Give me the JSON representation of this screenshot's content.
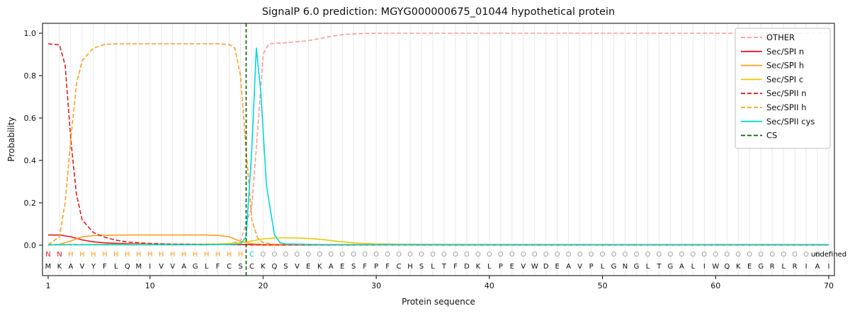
{
  "colors": {
    "background": "#ffffff",
    "grid": "#e9e9e9",
    "spine": "#2b2b2b",
    "tick_text": "#111111",
    "sequence_text": "#111111",
    "legend_border": "#c0c0c0"
  },
  "legend": [
    {
      "label": "OTHER",
      "color": "#ff9896",
      "dash": true
    },
    {
      "label": "Sec/SPI n",
      "color": "#e41a1c",
      "dash": false
    },
    {
      "label": "Sec/SPI h",
      "color": "#ff9e1b",
      "dash": false
    },
    {
      "label": "Sec/SPI c",
      "color": "#eec900",
      "dash": false
    },
    {
      "label": "Sec/SPII n",
      "color": "#e41a1c",
      "dash": true
    },
    {
      "label": "Sec/SPII h",
      "color": "#ff9e1b",
      "dash": true
    },
    {
      "label": "Sec/SPII cys",
      "color": "#00d8e0",
      "dash": false
    },
    {
      "label": "CS",
      "color": "#006400",
      "dash": true
    }
  ],
  "chart_data": {
    "type": "line",
    "title": "SignalP 6.0 prediction: MGYG000000675_01044 hypothetical protein",
    "xlabel": "Protein sequence",
    "ylabel": "Probability",
    "xlim": [
      0.5,
      70.5
    ],
    "ylim": [
      0,
      1.05
    ],
    "xticks": [
      1,
      10,
      20,
      30,
      40,
      50,
      60,
      70
    ],
    "yticks": [
      0.0,
      0.2,
      0.4,
      0.6,
      0.8,
      1.0
    ],
    "grid": "vertical line at every residue position",
    "legend_position": "upper right",
    "sequence": "MKAVYFLQMIVVAGLFCSCKQSVEKAESFPFCHSLTFDKLPEVWDEAVPLGNGLTGALIWQKEGRLRIAI",
    "annotation": "NNHHHHHHHHHHHHHHHHCOOOOOOOOOOOOOOOOOOOOOOOOOOOOOOOOOOOOOOOOOOOOOOOOOO",
    "annotation_colors": {
      "N": "#e41a1c",
      "H": "#ff9e1b",
      "C": "#00d8e0",
      "O": "#9e9e9e"
    },
    "cs": {
      "label": "CS",
      "color": "#006400",
      "dash": true,
      "x": 18.5
    },
    "series": [
      {
        "name": "OTHER",
        "color": "#ff9896",
        "dash": true,
        "points": [
          [
            1,
            0.004
          ],
          [
            5,
            0.004
          ],
          [
            10,
            0.004
          ],
          [
            15,
            0.004
          ],
          [
            17,
            0.006
          ],
          [
            18,
            0.02
          ],
          [
            19,
            0.18
          ],
          [
            19.6,
            0.6
          ],
          [
            20,
            0.9
          ],
          [
            20.5,
            0.95
          ],
          [
            22,
            0.955
          ],
          [
            24,
            0.965
          ],
          [
            25,
            0.975
          ],
          [
            26,
            0.985
          ],
          [
            27,
            0.993
          ],
          [
            28,
            0.997
          ],
          [
            30,
            1.0
          ],
          [
            35,
            1.0
          ],
          [
            40,
            1.0
          ],
          [
            45,
            1.0
          ],
          [
            50,
            1.0
          ],
          [
            55,
            1.0
          ],
          [
            60,
            1.0
          ],
          [
            65,
            1.0
          ],
          [
            70,
            1.0
          ]
        ]
      },
      {
        "name": "Sec/SPI n",
        "color": "#e41a1c",
        "dash": false,
        "points": [
          [
            1,
            0.048
          ],
          [
            2,
            0.048
          ],
          [
            3,
            0.04
          ],
          [
            4,
            0.025
          ],
          [
            5,
            0.016
          ],
          [
            6,
            0.011
          ],
          [
            8,
            0.007
          ],
          [
            10,
            0.005
          ],
          [
            14,
            0.004
          ],
          [
            18,
            0.003
          ],
          [
            20,
            0.002
          ],
          [
            25,
            0.001
          ],
          [
            30,
            0.001
          ],
          [
            40,
            0.001
          ],
          [
            50,
            0.001
          ],
          [
            60,
            0.001
          ],
          [
            70,
            0.001
          ]
        ]
      },
      {
        "name": "Sec/SPI h",
        "color": "#ff9e1b",
        "dash": false,
        "points": [
          [
            1,
            0.001
          ],
          [
            2,
            0.004
          ],
          [
            3,
            0.02
          ],
          [
            4,
            0.04
          ],
          [
            5,
            0.045
          ],
          [
            6,
            0.047
          ],
          [
            8,
            0.048
          ],
          [
            10,
            0.048
          ],
          [
            12,
            0.048
          ],
          [
            14,
            0.048
          ],
          [
            15,
            0.048
          ],
          [
            16,
            0.046
          ],
          [
            17,
            0.04
          ],
          [
            18,
            0.018
          ],
          [
            19,
            0.007
          ],
          [
            20,
            0.004
          ],
          [
            25,
            0.002
          ],
          [
            30,
            0.001
          ],
          [
            40,
            0.001
          ],
          [
            50,
            0.001
          ],
          [
            60,
            0.001
          ],
          [
            70,
            0.001
          ]
        ]
      },
      {
        "name": "Sec/SPI c",
        "color": "#eec900",
        "dash": false,
        "points": [
          [
            1,
            0.002
          ],
          [
            5,
            0.003
          ],
          [
            10,
            0.004
          ],
          [
            14,
            0.005
          ],
          [
            16,
            0.006
          ],
          [
            17,
            0.008
          ],
          [
            18,
            0.012
          ],
          [
            19,
            0.02
          ],
          [
            20,
            0.03
          ],
          [
            21,
            0.034
          ],
          [
            22,
            0.035
          ],
          [
            23,
            0.034
          ],
          [
            24,
            0.032
          ],
          [
            25,
            0.028
          ],
          [
            26,
            0.022
          ],
          [
            27,
            0.016
          ],
          [
            28,
            0.011
          ],
          [
            29,
            0.008
          ],
          [
            30,
            0.006
          ],
          [
            32,
            0.005
          ],
          [
            35,
            0.004
          ],
          [
            40,
            0.003
          ],
          [
            50,
            0.002
          ],
          [
            60,
            0.002
          ],
          [
            70,
            0.002
          ]
        ]
      },
      {
        "name": "Sec/SPII n",
        "color": "#e41a1c",
        "dash": true,
        "points": [
          [
            1,
            0.95
          ],
          [
            2,
            0.945
          ],
          [
            2.5,
            0.85
          ],
          [
            3,
            0.5
          ],
          [
            3.5,
            0.24
          ],
          [
            4,
            0.12
          ],
          [
            5,
            0.06
          ],
          [
            6,
            0.038
          ],
          [
            7,
            0.024
          ],
          [
            8,
            0.015
          ],
          [
            10,
            0.008
          ],
          [
            12,
            0.005
          ],
          [
            15,
            0.003
          ],
          [
            18,
            0.002
          ],
          [
            20,
            0.001
          ],
          [
            30,
            0.001
          ],
          [
            40,
            0.001
          ],
          [
            50,
            0.001
          ],
          [
            60,
            0.001
          ],
          [
            70,
            0.001
          ]
        ]
      },
      {
        "name": "Sec/SPII h",
        "color": "#ff9e1b",
        "dash": true,
        "points": [
          [
            1,
            0.002
          ],
          [
            2,
            0.04
          ],
          [
            2.5,
            0.2
          ],
          [
            3,
            0.5
          ],
          [
            3.5,
            0.76
          ],
          [
            4,
            0.87
          ],
          [
            5,
            0.93
          ],
          [
            6,
            0.947
          ],
          [
            7,
            0.95
          ],
          [
            10,
            0.95
          ],
          [
            12,
            0.95
          ],
          [
            14,
            0.95
          ],
          [
            16,
            0.95
          ],
          [
            17,
            0.947
          ],
          [
            17.5,
            0.93
          ],
          [
            18,
            0.8
          ],
          [
            18.5,
            0.45
          ],
          [
            19,
            0.12
          ],
          [
            19.5,
            0.035
          ],
          [
            20,
            0.012
          ],
          [
            21,
            0.005
          ],
          [
            25,
            0.002
          ],
          [
            30,
            0.001
          ],
          [
            40,
            0.001
          ],
          [
            50,
            0.001
          ],
          [
            60,
            0.001
          ],
          [
            70,
            0.001
          ]
        ]
      },
      {
        "name": "Sec/SPII cys",
        "color": "#00d8e0",
        "dash": false,
        "points": [
          [
            1,
            0.002
          ],
          [
            5,
            0.002
          ],
          [
            10,
            0.002
          ],
          [
            15,
            0.002
          ],
          [
            17,
            0.003
          ],
          [
            18,
            0.006
          ],
          [
            18.5,
            0.04
          ],
          [
            19,
            0.45
          ],
          [
            19.4,
            0.93
          ],
          [
            19.8,
            0.72
          ],
          [
            20.3,
            0.28
          ],
          [
            21,
            0.05
          ],
          [
            21.5,
            0.012
          ],
          [
            22,
            0.006
          ],
          [
            25,
            0.003
          ],
          [
            30,
            0.003
          ],
          [
            40,
            0.003
          ],
          [
            50,
            0.003
          ],
          [
            60,
            0.003
          ],
          [
            70,
            0.003
          ]
        ]
      }
    ]
  }
}
